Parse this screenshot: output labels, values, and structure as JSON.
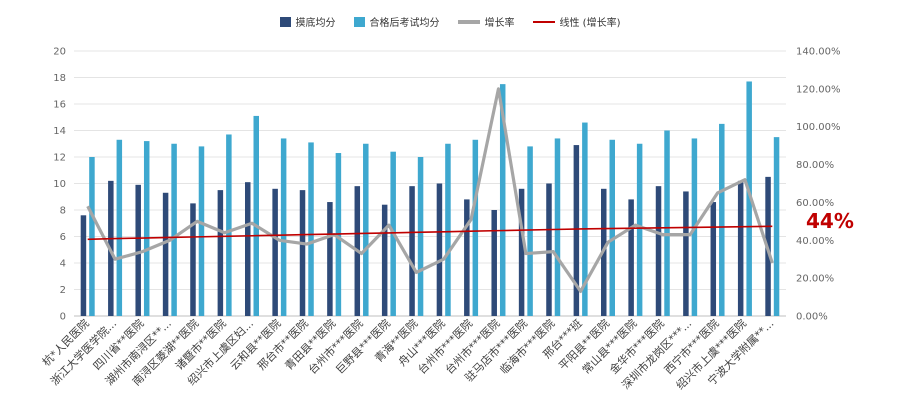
{
  "legend": {
    "series1": "摸底均分",
    "series2": "合格后考试均分",
    "series3": "增长率",
    "series4": "线性 (增长率)"
  },
  "colors": {
    "series1": "#2e4a78",
    "series2": "#3ea8cf",
    "series3": "#a6a6a6",
    "trend": "#c00000",
    "axis_text": "#666666",
    "grid": "#e4e4e4"
  },
  "callout": "44%",
  "chart_data": {
    "type": "bar",
    "categories": [
      "杭*人民医院",
      "浙江大学医学院...",
      "四川省**医院",
      "湖州市南浔区**...",
      "南浔区菱湖**医院",
      "诸暨市**医院",
      "绍兴市上虞区妇...",
      "云和县**医院",
      "邢台市**医院",
      "青田县**医院",
      "台州市***医院",
      "巨野县***医院",
      "青海**医院",
      "舟山***医院",
      "台州市***医院",
      "台州市***医院",
      "驻马店市***医院",
      "临海市***医院",
      "邢台***班",
      "平阳县**医院",
      "常山县***医院",
      "金华市***医院",
      "深圳市龙岗区***...",
      "西宁市***医院",
      "绍兴市上虞***医院",
      "宁波大学附属**..."
    ],
    "series": [
      {
        "name": "摸底均分",
        "values": [
          7.6,
          10.2,
          9.9,
          9.3,
          8.5,
          9.5,
          10.1,
          9.6,
          9.5,
          8.6,
          9.8,
          8.4,
          9.8,
          10.0,
          8.8,
          8.0,
          9.6,
          10.0,
          12.9,
          9.6,
          8.8,
          9.8,
          9.4,
          8.6,
          10.2,
          10.5
        ]
      },
      {
        "name": "合格后考试均分",
        "values": [
          12.0,
          13.3,
          13.2,
          13.0,
          12.8,
          13.7,
          15.1,
          13.4,
          13.1,
          12.3,
          13.0,
          12.4,
          12.0,
          13.0,
          13.3,
          17.5,
          12.8,
          13.4,
          14.6,
          13.3,
          13.0,
          14.0,
          13.4,
          14.5,
          17.7,
          13.5
        ]
      },
      {
        "name": "增长率",
        "axis": "right",
        "values": [
          58,
          30,
          34,
          40,
          50,
          44,
          49,
          40,
          38,
          43,
          33,
          48,
          23,
          30,
          51,
          120,
          33,
          34,
          13,
          39,
          48,
          43,
          43,
          65,
          72,
          28
        ]
      },
      {
        "name": "线性 (增长率)",
        "axis": "right",
        "values": [
          40.5,
          40.9,
          41.2,
          41.5,
          41.8,
          42.1,
          42.4,
          42.7,
          43.0,
          43.3,
          43.6,
          43.9,
          44.2,
          44.5,
          44.8,
          45.1,
          45.4,
          45.7,
          46.0,
          46.2,
          46.4,
          46.6,
          46.8,
          47.0,
          47.2,
          47.4
        ]
      }
    ],
    "ylim": [
      0,
      20
    ],
    "yticks": [
      "0",
      "2",
      "4",
      "6",
      "8",
      "10",
      "12",
      "14",
      "16",
      "18",
      "20"
    ],
    "y2lim": [
      0,
      140
    ],
    "y2ticks": [
      "0.00%",
      "20.00%",
      "40.00%",
      "60.00%",
      "80.00%",
      "100.00%",
      "120.00%",
      "140.00%"
    ],
    "grid": true,
    "legend_position": "top"
  }
}
